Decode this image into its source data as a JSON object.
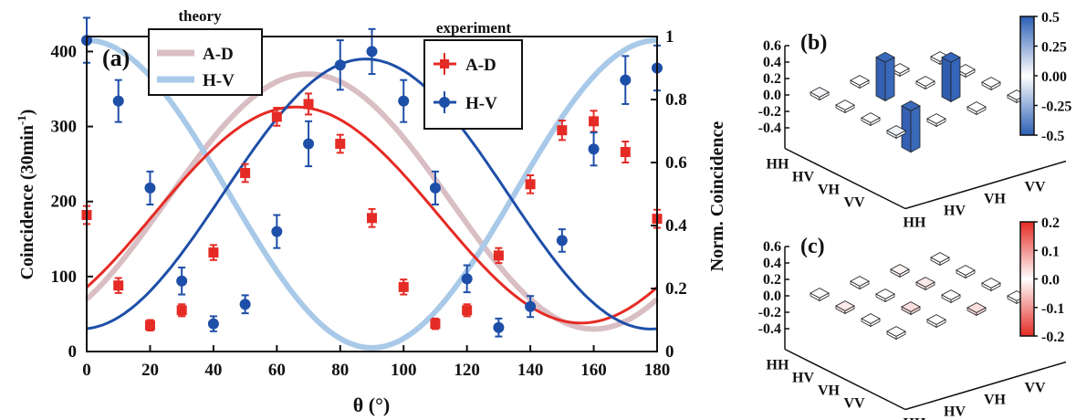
{
  "chart_data": [
    {
      "panel_label": "(a)",
      "type": "line",
      "xlabel": "θ (°)",
      "ylabel": "Coincidence (30min-1)",
      "ylabel_base": "Coincidence  (30min",
      "ylabel_sup": "-1",
      "ylabel_close": ")",
      "y2label": "Norm. Coincidence",
      "xlim": [
        0,
        180
      ],
      "ylim": [
        0,
        420
      ],
      "y2lim": [
        0,
        1.0
      ],
      "xticks": [
        "0",
        "20",
        "40",
        "60",
        "80",
        "100",
        "120",
        "140",
        "160",
        "180"
      ],
      "yticks": [
        "0",
        "100",
        "200",
        "300",
        "400"
      ],
      "y2ticks": [
        "0",
        "0.2",
        "0.4",
        "0.6",
        "0.8",
        "1"
      ],
      "legend_theory": {
        "title": "theory",
        "entries": [
          "A-D",
          "H-V"
        ],
        "placement": "top-left"
      },
      "legend_experiment": {
        "title": "experiment",
        "entries": [
          "A-D",
          "H-V"
        ],
        "placement": "top-center"
      },
      "colors": {
        "ad_exp": "#e52b25",
        "hv_exp": "#1e4fa8",
        "ad_theory": "#d9bfc4",
        "hv_theory": "#a9c9e8"
      },
      "theory_models": {
        "A-D": {
          "offset": 200,
          "amplitude": 170,
          "phase_deg": 70,
          "period_deg": 90
        },
        "H-V": {
          "offset": 210,
          "amplitude": 205,
          "phase_deg": 0,
          "period_deg": 90
        }
      },
      "fit_models": {
        "A-D": {
          "offset": 182,
          "amplitude": 144,
          "phase_deg": 66,
          "period_deg": 90
        },
        "H-V": {
          "offset": 210,
          "amplitude": 180,
          "phase_deg": 88,
          "period_deg": 90
        }
      },
      "series": [
        {
          "name": "A-D",
          "marker": "square",
          "x": [
            0,
            10,
            20,
            30,
            40,
            50,
            60,
            70,
            80,
            90,
            100,
            110,
            120,
            130,
            140,
            150,
            160,
            170,
            180
          ],
          "y": [
            182,
            88,
            35,
            55,
            132,
            238,
            313,
            330,
            277,
            178,
            86,
            37,
            55,
            128,
            223,
            295,
            307,
            266,
            177
          ],
          "err": [
            12,
            10,
            7,
            8,
            10,
            12,
            12,
            14,
            12,
            12,
            10,
            7,
            8,
            10,
            12,
            13,
            14,
            14,
            12
          ]
        },
        {
          "name": "H-V",
          "marker": "circle",
          "x": [
            0,
            10,
            20,
            30,
            40,
            50,
            60,
            70,
            80,
            90,
            100,
            110,
            120,
            130,
            140,
            150,
            160,
            170,
            180
          ],
          "y": [
            415,
            334,
            218,
            94,
            37,
            63,
            160,
            277,
            382,
            400,
            334,
            218,
            97,
            32,
            60,
            148,
            270,
            362,
            378
          ],
          "err": [
            30,
            28,
            22,
            18,
            10,
            12,
            22,
            30,
            33,
            30,
            28,
            22,
            18,
            12,
            14,
            15,
            22,
            32,
            30
          ]
        }
      ]
    },
    {
      "panel_label": "(b)",
      "type": "bar3d",
      "zlim": [
        -0.4,
        0.6
      ],
      "zticks": [
        "0.6",
        "0.4",
        "0.2",
        "0.0",
        "-0.2",
        "-0.4"
      ],
      "row_labels": [
        "HH",
        "HV",
        "VH",
        "VV"
      ],
      "col_labels": [
        "HH",
        "HV",
        "VH",
        "VV"
      ],
      "colorbar": {
        "ticks": [
          "0.5",
          "0.25",
          "0.00",
          "-0.25",
          "-0.5"
        ],
        "min": -0.5,
        "max": 0.5,
        "colors": [
          "#2c5fb5",
          "#ffffff",
          "#2c5fb5"
        ]
      },
      "matrix": [
        [
          0.02,
          0.0,
          0.0,
          0.0
        ],
        [
          0.0,
          0.47,
          0.0,
          0.0
        ],
        [
          0.0,
          -0.47,
          0.48,
          0.0
        ],
        [
          0.03,
          0.0,
          0.0,
          0.02
        ]
      ]
    },
    {
      "panel_label": "(c)",
      "type": "bar3d",
      "zlim": [
        -0.4,
        0.6
      ],
      "zticks": [
        "0.6",
        "0.4",
        "0.2",
        "0.0",
        "-0.2",
        "-0.4"
      ],
      "row_labels": [
        "HH",
        "HV",
        "VH",
        "VV"
      ],
      "col_labels": [
        "HH",
        "HV",
        "VH",
        "VV"
      ],
      "colorbar": {
        "ticks": [
          "0.2",
          "0.1",
          "0.0",
          "-0.1",
          "-0.2"
        ],
        "min": -0.2,
        "max": 0.2,
        "colors": [
          "#e52b25",
          "#ffffff",
          "#e52b25"
        ]
      },
      "matrix": [
        [
          0.0,
          0.0,
          0.01,
          0.0
        ],
        [
          0.02,
          0.0,
          0.02,
          0.0
        ],
        [
          0.0,
          0.03,
          0.0,
          0.0
        ],
        [
          0.0,
          0.0,
          0.03,
          0.0
        ]
      ]
    }
  ]
}
